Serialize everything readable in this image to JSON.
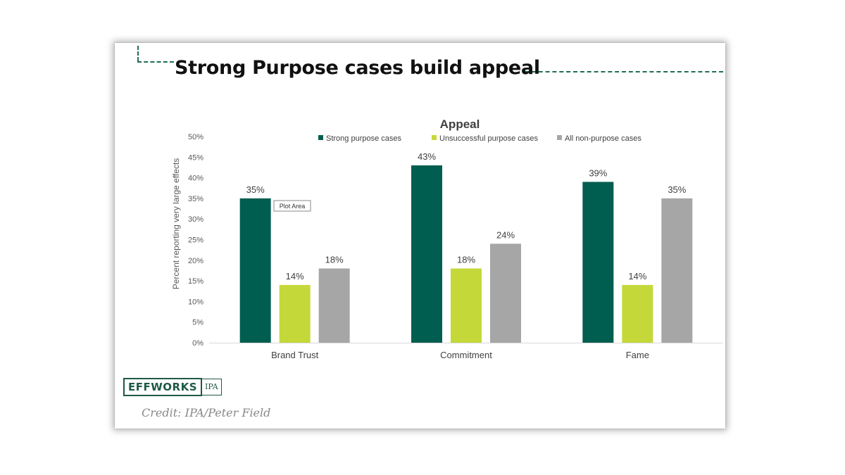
{
  "slide": {
    "title": "Strong Purpose cases build appeal",
    "credit": "Credit: IPA/Peter Field",
    "logo_main": "EFFWORKS",
    "logo_sub": "IPA",
    "tooltip": "Plot Area"
  },
  "colors": {
    "accent": "#1e6e4e",
    "strong": "#005e50",
    "unsuccessful": "#c5d83a",
    "non_purpose": "#a6a6a6"
  },
  "chart_data": {
    "type": "bar",
    "title": "Appeal",
    "ylabel": "Percent reporting very large effects",
    "xlabel": "",
    "categories": [
      "Brand Trust",
      "Commitment",
      "Fame"
    ],
    "series": [
      {
        "name": "Strong purpose cases",
        "values": [
          35,
          43,
          39
        ],
        "labels": [
          "35%",
          "43%",
          "39%"
        ],
        "color": "#005e50"
      },
      {
        "name": "Unsuccessful purpose cases",
        "values": [
          14,
          18,
          14
        ],
        "labels": [
          "14%",
          "18%",
          "14%"
        ],
        "color": "#c5d83a"
      },
      {
        "name": "All non-purpose cases",
        "values": [
          18,
          24,
          35
        ],
        "labels": [
          "18%",
          "24%",
          "35%"
        ],
        "color": "#a6a6a6"
      }
    ],
    "yticks": [
      "0%",
      "5%",
      "10%",
      "15%",
      "20%",
      "25%",
      "30%",
      "35%",
      "40%",
      "45%",
      "50%"
    ],
    "ylim": [
      0,
      50
    ],
    "legend": "top",
    "grid": false
  }
}
